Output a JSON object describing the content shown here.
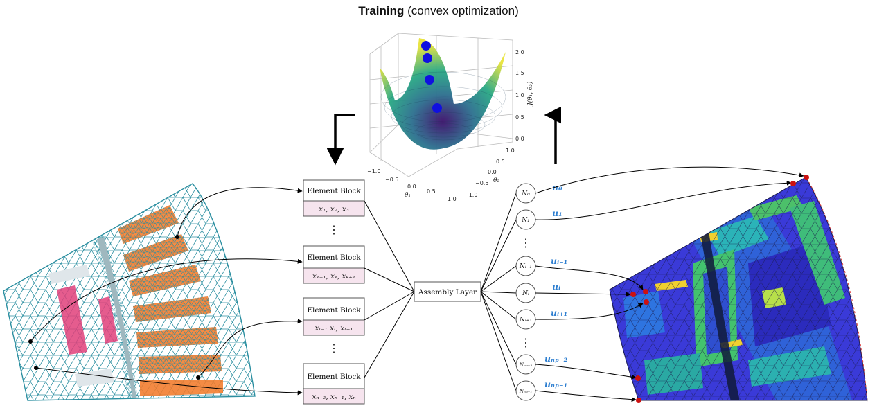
{
  "title": {
    "bold": "Training",
    "rest": " (convex optimization)"
  },
  "element_blocks": [
    {
      "label": "Element Block",
      "vars": "x₁, x₂, x₃"
    },
    {
      "label": "Element Block",
      "vars": "xₖ₋₁, xₖ, xₖ₊₁"
    },
    {
      "label": "Element Block",
      "vars": "xₗ₋₁ xₗ, xₗ₊₁"
    },
    {
      "label": "Element Block",
      "vars": "xₙ₋₂, xₙ₋₁, xₙ"
    }
  ],
  "assembly": {
    "label": "Assembly Layer"
  },
  "nodes": [
    {
      "label": "N₀",
      "u": "u₀"
    },
    {
      "label": "N₁",
      "u": "u₁"
    },
    {
      "label": "Nᵢ₋₁",
      "u": "uᵢ₋₁"
    },
    {
      "label": "Nᵢ",
      "u": "uᵢ"
    },
    {
      "label": "Nᵢ₊₁",
      "u": "uᵢ₊₁"
    },
    {
      "label": "Nₙₚ₋₂",
      "u": "uₙₚ₋₂"
    },
    {
      "label": "Nₙₚ₋₁",
      "u": "uₙₚ₋₁"
    }
  ],
  "ellipsis": "⋮",
  "plot3d": {
    "zlabel": "J(θ₁, θ₂)",
    "xlabel": "θ₁",
    "ylabel": "θ₂",
    "z_ticks": [
      "2.0",
      "1.5",
      "1.0",
      "0.5",
      "0.0"
    ],
    "x_ticks": [
      "−1.0",
      "−0.5",
      "0.0",
      "0.5",
      "1.0"
    ],
    "y_ticks": [
      "1.0",
      "0.5",
      "0.0",
      "−0.5",
      "−1.0"
    ],
    "point_color": "#1010e0",
    "points": 4
  },
  "colors": {
    "mesh_line": "#2a8ea0",
    "orange_region": "#f37b2b",
    "pink_region": "#e0407a",
    "arrow": "#000000",
    "u_label": "#2f7fd0",
    "node_dot": "#cc1111",
    "block_var_fill": "#f6e4ee"
  }
}
